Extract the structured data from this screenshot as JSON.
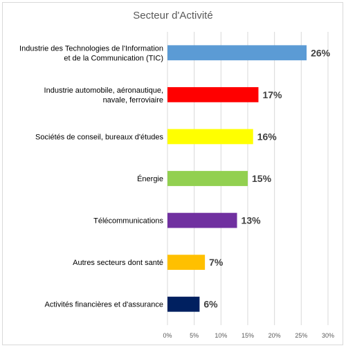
{
  "chart_data": {
    "type": "bar",
    "orientation": "horizontal",
    "title": "Secteur d'Activité",
    "xlabel": "",
    "ylabel": "",
    "xlim": [
      0,
      30
    ],
    "ticks": [
      "0%",
      "5%",
      "10%",
      "15%",
      "20%",
      "25%",
      "30%"
    ],
    "tick_values": [
      0,
      5,
      10,
      15,
      20,
      25,
      30
    ],
    "grid": true,
    "legend": "none",
    "categories": [
      [
        "Industrie des Technologies de l'Information",
        "et de la Communication (TIC)"
      ],
      [
        "Industrie automobile, aéronautique,",
        "navale, ferroviaire"
      ],
      [
        "Sociétés de conseil, bureaux d'études"
      ],
      [
        "Énergie"
      ],
      [
        "Télécommunications"
      ],
      [
        "Autres secteurs dont santé"
      ],
      [
        "Activités financières et d'assurance"
      ]
    ],
    "values": [
      26,
      17,
      16,
      15,
      13,
      7,
      6
    ],
    "labels": [
      "26%",
      "17%",
      "16%",
      "15%",
      "13%",
      "7%",
      "6%"
    ],
    "colors": [
      "#5b9bd5",
      "#ff0000",
      "#ffff00",
      "#92d050",
      "#7030a0",
      "#ffc000",
      "#002060"
    ]
  }
}
